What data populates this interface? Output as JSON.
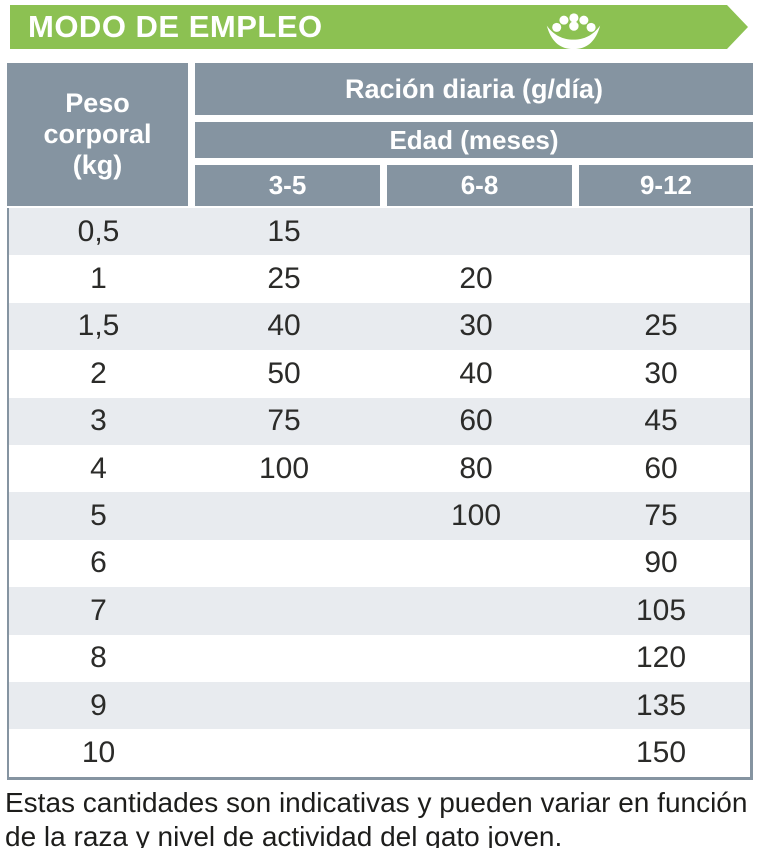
{
  "banner": {
    "title": "MODO DE EMPLEO",
    "icon": "food-bowl-icon"
  },
  "table": {
    "corner_header": "Peso corporal (kg)",
    "group_header": "Ración diaria (g/día)",
    "sub_group_header": "Edad (meses)",
    "age_columns": [
      "3-5",
      "6-8",
      "9-12"
    ],
    "rows": [
      {
        "weight": "0,5",
        "values": [
          "15",
          "",
          ""
        ]
      },
      {
        "weight": "1",
        "values": [
          "25",
          "20",
          ""
        ]
      },
      {
        "weight": "1,5",
        "values": [
          "40",
          "30",
          "25"
        ]
      },
      {
        "weight": "2",
        "values": [
          "50",
          "40",
          "30"
        ]
      },
      {
        "weight": "3",
        "values": [
          "75",
          "60",
          "45"
        ]
      },
      {
        "weight": "4",
        "values": [
          "100",
          "80",
          "60"
        ]
      },
      {
        "weight": "5",
        "values": [
          "",
          "100",
          "75"
        ]
      },
      {
        "weight": "6",
        "values": [
          "",
          "",
          "90"
        ]
      },
      {
        "weight": "7",
        "values": [
          "",
          "",
          "105"
        ]
      },
      {
        "weight": "8",
        "values": [
          "",
          "",
          "120"
        ]
      },
      {
        "weight": "9",
        "values": [
          "",
          "",
          "135"
        ]
      },
      {
        "weight": "10",
        "values": [
          "",
          "",
          "150"
        ]
      }
    ]
  },
  "footnote": {
    "line1": "Estas cantidades son indicativas y pueden variar en función",
    "line2": "de la raza y nivel de actividad del gato joven."
  },
  "colors": {
    "green": "#8CC152",
    "slate_header": "#8594A1",
    "row_stripe": "#E8EBEF",
    "text_dark": "#2B2B29",
    "footnote_text": "#1D1D1B"
  }
}
